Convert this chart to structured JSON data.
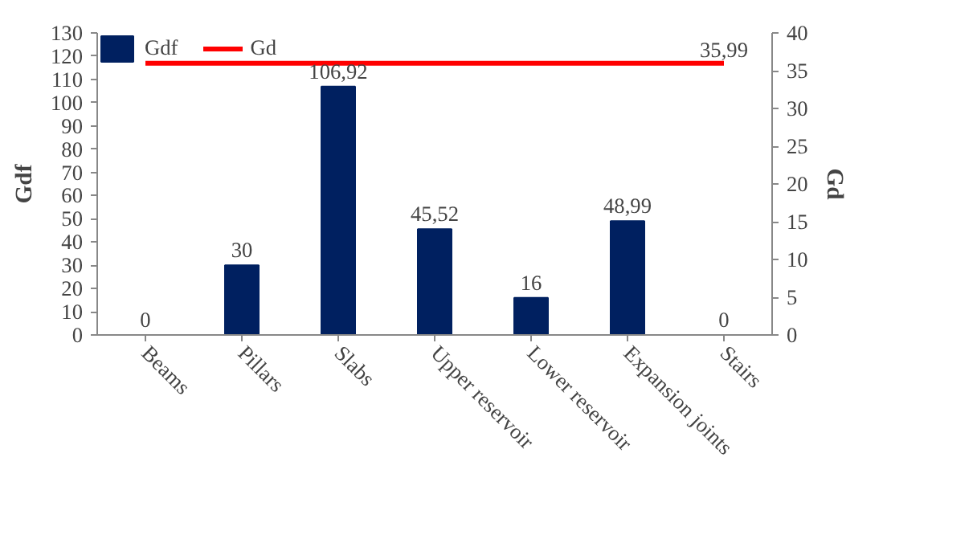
{
  "chart_data": {
    "type": "bar",
    "categories": [
      "Beams",
      "Pillars",
      "Slabs",
      "Upper reservoir",
      "Lower reservoir",
      "Expansion joints",
      "Stairs"
    ],
    "series": [
      {
        "name": "Gdf",
        "color": "#002060",
        "values": [
          0,
          30,
          106.92,
          45.52,
          16,
          48.99,
          0
        ],
        "value_labels": [
          "0",
          "30",
          "106,92",
          "45,52",
          "16",
          "48,99",
          "0"
        ]
      },
      {
        "name": "Gd",
        "type": "line",
        "axis": "y2",
        "color": "#ff0000",
        "values": [
          35.99,
          35.99,
          35.99,
          35.99,
          35.99,
          35.99,
          35.99
        ],
        "value_labels": [
          null,
          null,
          null,
          null,
          null,
          null,
          "35,99"
        ]
      }
    ],
    "ylabel": "Gdf",
    "y2label": "Gd",
    "ylim": [
      0,
      130
    ],
    "yticks": [
      0,
      10,
      20,
      30,
      40,
      50,
      60,
      70,
      80,
      90,
      100,
      110,
      120,
      130
    ],
    "y2lim": [
      0,
      40
    ],
    "y2ticks": [
      0,
      5,
      10,
      15,
      20,
      25,
      30,
      35,
      40
    ],
    "grid": false,
    "legend": "top",
    "marker": "none",
    "line_style": "solid"
  }
}
